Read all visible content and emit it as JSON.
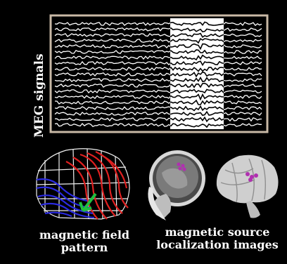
{
  "meg_label": "MEG signals",
  "captions": {
    "field_line1": "magnetic field",
    "field_line2": "pattern",
    "source_line1": "magnetic source",
    "source_line2": "localization images"
  },
  "colors": {
    "background": "#000000",
    "frame": "#c9b9a6",
    "trace": "#ffffff",
    "highlight": "#ffffff",
    "field_red": "#e02020",
    "field_blue": "#2a2ae0",
    "arrow": "#20c040",
    "dipole": "#b030b0"
  },
  "images": [
    {
      "name": "magnetic-field-pattern-head",
      "description": "wireframe head with red and blue field contours and green arrow"
    },
    {
      "name": "mri-sagittal-slice",
      "description": "MRI brain slice with purple source dots"
    },
    {
      "name": "3d-brain-render",
      "description": "rendered brain surface with purple source dots"
    }
  ]
}
